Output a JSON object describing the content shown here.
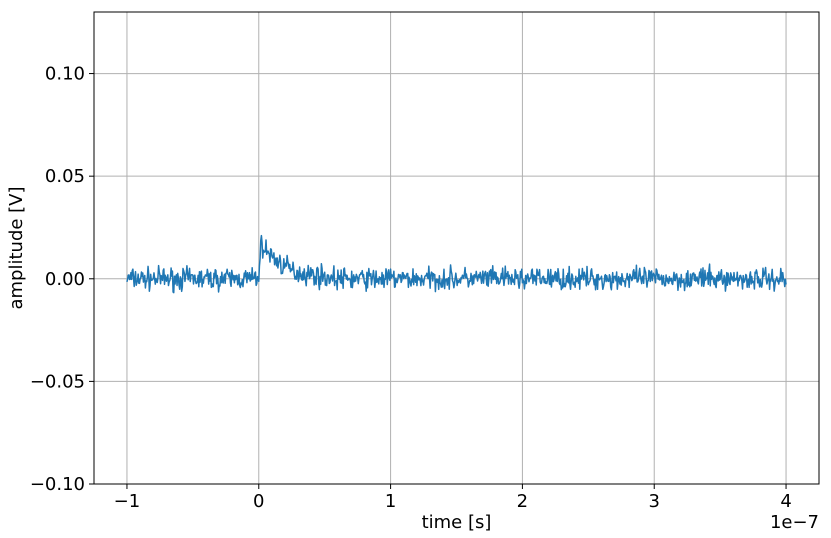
{
  "chart_data": {
    "type": "line",
    "title": "",
    "xlabel": "time [s]",
    "ylabel": "amplitude [V]",
    "x_offset_label": "1e−7",
    "xlim": [
      -1.25e-07,
      4.25e-07
    ],
    "ylim": [
      -0.1,
      0.13
    ],
    "x_ticks": [
      -1e-07,
      0,
      1e-07,
      2e-07,
      3e-07,
      4e-07
    ],
    "x_tick_labels": [
      "−1",
      "0",
      "1",
      "2",
      "3",
      "4"
    ],
    "y_ticks": [
      -0.1,
      -0.05,
      0.0,
      0.05,
      0.1
    ],
    "y_tick_labels": [
      "−0.10",
      "−0.05",
      "0.00",
      "0.05",
      "0.10"
    ],
    "grid": true,
    "series": [
      {
        "color": "#1f77b4",
        "x": [
          -1e-07,
          -9e-08,
          -8e-08,
          -7e-08,
          -6e-08,
          -5e-08,
          -4e-08,
          -3e-08,
          -2e-08,
          -1e-08,
          -1e-09,
          0.0,
          2e-09,
          5e-09,
          1e-08,
          1.5e-08,
          2e-08,
          2.5e-08,
          3e-08,
          4e-08,
          5e-08,
          6e-08,
          8e-08,
          1e-07,
          1.5e-07,
          2e-07,
          2.5e-07,
          3e-07,
          3.5e-07,
          4e-07
        ],
        "values": [
          0.0,
          0.0,
          0.0,
          0.0,
          0.0,
          0.0,
          0.0,
          0.0,
          0.0,
          0.0,
          0.0,
          0.003,
          0.017,
          0.014,
          0.011,
          0.008,
          0.006,
          0.004,
          0.003,
          0.002,
          0.001,
          0.0,
          0.0,
          0.0,
          0.0,
          0.0,
          0.0,
          0.0,
          0.0,
          0.0
        ],
        "noise_amplitude": 0.004
      }
    ]
  }
}
